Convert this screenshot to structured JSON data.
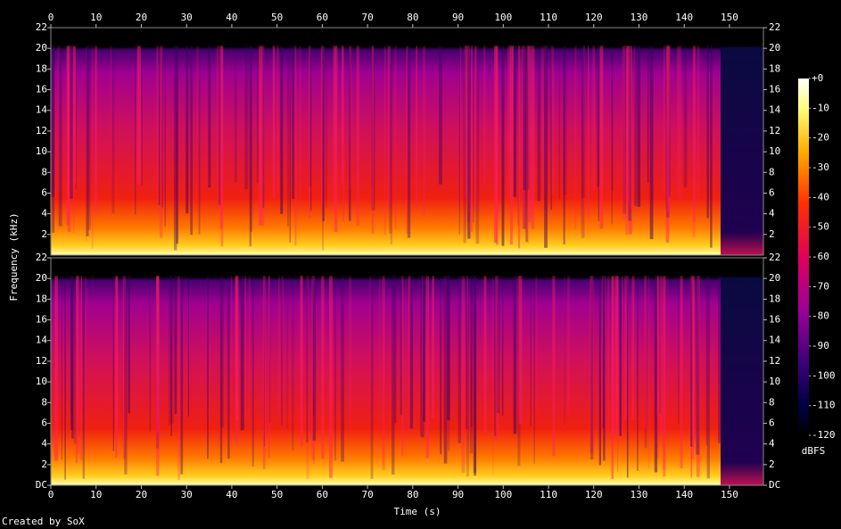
{
  "chart_data": {
    "type": "spectrogram",
    "xlabel": "Time (s)",
    "ylabel": "Frequency (kHz)",
    "xlim": [
      0,
      157.5
    ],
    "xticks": [
      0,
      10,
      20,
      30,
      40,
      50,
      60,
      70,
      80,
      90,
      100,
      110,
      120,
      130,
      140,
      150
    ],
    "ylim": [
      0,
      22
    ],
    "yticks": [
      {
        "value": 0,
        "label": "DC"
      },
      2,
      4,
      6,
      8,
      10,
      12,
      14,
      16,
      18,
      20,
      22
    ],
    "colorbar": {
      "label": "dBFS",
      "lim": [
        -120,
        0
      ],
      "ticks": [
        {
          "value": 0,
          "label": "+0"
        },
        -10,
        -20,
        -30,
        -40,
        -50,
        -60,
        -70,
        -80,
        -90,
        -100,
        -110,
        -120
      ]
    },
    "footer": "Created by SoX"
  }
}
